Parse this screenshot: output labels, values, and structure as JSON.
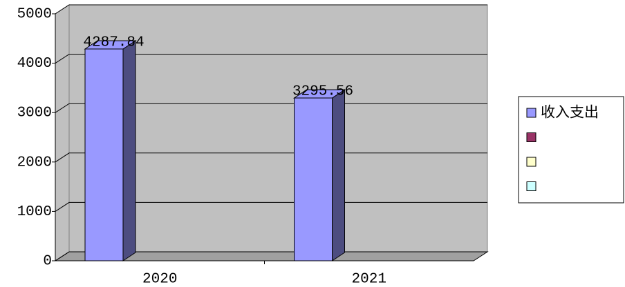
{
  "chart_data": {
    "type": "bar3d",
    "categories": [
      "2020",
      "2021"
    ],
    "series": [
      {
        "name": "收入支出",
        "color": "#9999ff",
        "values": [
          4287.84,
          3295.56
        ]
      },
      {
        "name": null,
        "color": "#993366",
        "values": [
          null,
          null
        ]
      },
      {
        "name": null,
        "color": "#ffffcc",
        "values": [
          null,
          null
        ]
      },
      {
        "name": null,
        "color": "#ccffff",
        "values": [
          null,
          null
        ]
      }
    ],
    "ylim": [
      0,
      5000
    ],
    "yticks": [
      0,
      1000,
      2000,
      3000,
      4000,
      5000
    ],
    "grid": true,
    "legend": "right",
    "wall_color": "#c0c0c0"
  }
}
